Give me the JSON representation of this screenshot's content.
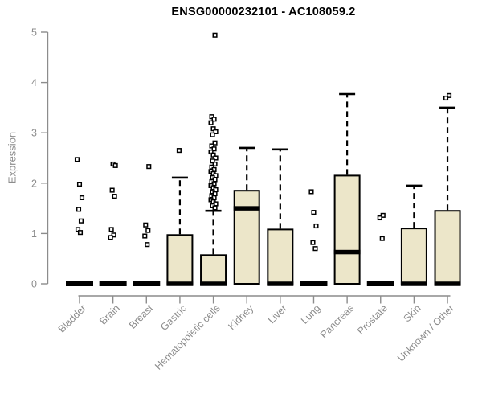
{
  "chart_data": {
    "type": "boxplot",
    "title": "ENSG00000232101 - AC108059.2",
    "ylabel": "Expression",
    "xlabel": "",
    "ylim": [
      0,
      5
    ],
    "yticks": [
      0,
      1,
      2,
      3,
      4,
      5
    ],
    "grid": false,
    "legend": "none",
    "categories": [
      "Bladder",
      "Brain",
      "Breast",
      "Gastric",
      "Hematopoietic cells",
      "Kidney",
      "Liver",
      "Lung",
      "Pancreas",
      "Prostate",
      "Skin",
      "Unknown / Other"
    ],
    "boxes": [
      {
        "category": "Bladder",
        "q1": 0,
        "median": 0,
        "q3": 0,
        "whisker_low": 0,
        "whisker_high": 0,
        "outliers": [
          2.47,
          1.98,
          1.71,
          1.48,
          1.25,
          1.08,
          1.02
        ]
      },
      {
        "category": "Brain",
        "q1": 0,
        "median": 0,
        "q3": 0,
        "whisker_low": 0,
        "whisker_high": 0,
        "outliers": [
          2.38,
          2.35,
          1.86,
          1.74,
          1.08,
          0.97,
          0.92
        ]
      },
      {
        "category": "Breast",
        "q1": 0,
        "median": 0,
        "q3": 0,
        "whisker_low": 0,
        "whisker_high": 0,
        "outliers": [
          2.33,
          1.17,
          1.06,
          0.95,
          0.78
        ]
      },
      {
        "category": "Gastric",
        "q1": 0,
        "median": 0,
        "q3": 0.97,
        "whisker_low": 0,
        "whisker_high": 2.11,
        "outliers": [
          2.65
        ]
      },
      {
        "category": "Hematopoietic cells",
        "q1": 0,
        "median": 0,
        "q3": 0.57,
        "whisker_low": 0,
        "whisker_high": 1.45,
        "outliers": [
          4.94,
          3.32,
          3.27,
          3.2,
          3.08,
          3.02,
          2.96,
          2.8,
          2.74,
          2.68,
          2.62,
          2.56,
          2.5,
          2.44,
          2.38,
          2.32,
          2.27,
          2.23,
          2.19,
          2.15,
          2.11,
          2.07,
          2.03,
          1.99,
          1.95,
          1.91,
          1.87,
          1.83,
          1.79,
          1.75,
          1.71,
          1.67,
          1.63,
          1.59,
          1.55,
          1.51
        ]
      },
      {
        "category": "Kidney",
        "q1": 0,
        "median": 1.5,
        "q3": 1.85,
        "whisker_low": 0,
        "whisker_high": 2.7,
        "outliers": []
      },
      {
        "category": "Liver",
        "q1": 0,
        "median": 0,
        "q3": 1.08,
        "whisker_low": 0,
        "whisker_high": 2.67,
        "outliers": []
      },
      {
        "category": "Lung",
        "q1": 0,
        "median": 0,
        "q3": 0,
        "whisker_low": 0,
        "whisker_high": 0,
        "outliers": [
          1.83,
          1.42,
          1.15,
          0.82,
          0.7
        ]
      },
      {
        "category": "Pancreas",
        "q1": 0,
        "median": 0.63,
        "q3": 2.15,
        "whisker_low": 0,
        "whisker_high": 3.77,
        "outliers": []
      },
      {
        "category": "Prostate",
        "q1": 0,
        "median": 0,
        "q3": 0,
        "whisker_low": 0,
        "whisker_high": 0,
        "outliers": [
          1.36,
          1.31,
          0.9
        ]
      },
      {
        "category": "Skin",
        "q1": 0,
        "median": 0,
        "q3": 1.1,
        "whisker_low": 0,
        "whisker_high": 1.95,
        "outliers": []
      },
      {
        "category": "Unknown / Other",
        "q1": 0,
        "median": 0,
        "q3": 1.45,
        "whisker_low": 0,
        "whisker_high": 3.5,
        "outliers": [
          3.74,
          3.69
        ]
      }
    ],
    "colors": {
      "background": "#FFFFFF",
      "box_fill": "#ECE6C9",
      "box_border": "#000000",
      "median": "#000000",
      "whisker": "#000000",
      "outlier_stroke": "#000000",
      "outlier_fill": "#FFFFFF",
      "axis": "#8C8C8C",
      "tick_label": "#8C8C8C",
      "title": "#000000"
    }
  }
}
